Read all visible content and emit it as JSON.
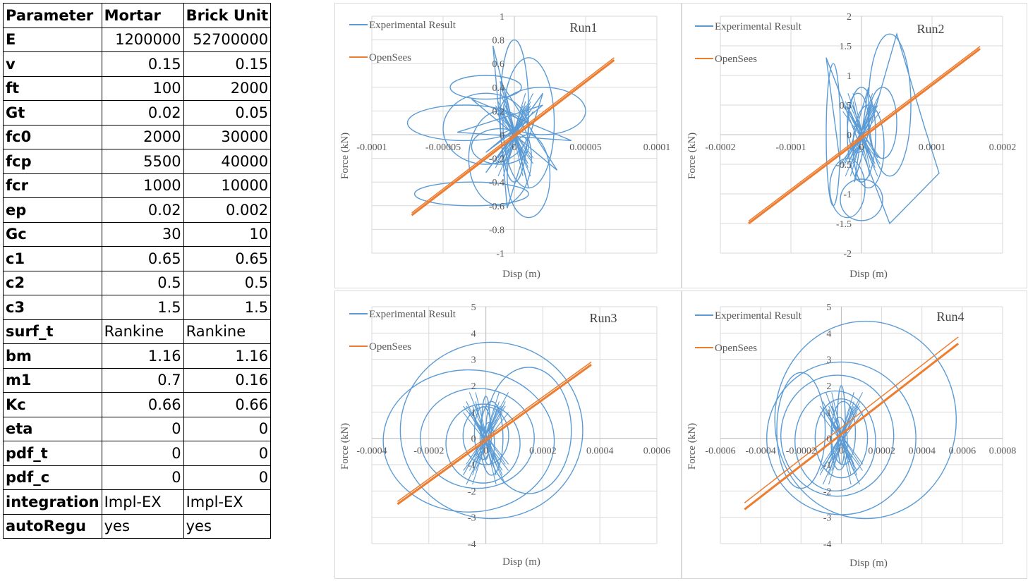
{
  "table": {
    "headers": [
      "Parameter",
      "Mortar",
      "Brick Unit"
    ],
    "rows": [
      {
        "param": "E",
        "mortar": "1200000",
        "brick": "52700000",
        "kind": "num"
      },
      {
        "param": "v",
        "mortar": "0.15",
        "brick": "0.15",
        "kind": "num"
      },
      {
        "param": "ft",
        "mortar": "100",
        "brick": "2000",
        "kind": "num"
      },
      {
        "param": "Gt",
        "mortar": "0.02",
        "brick": "0.05",
        "kind": "num"
      },
      {
        "param": "fc0",
        "mortar": "2000",
        "brick": "30000",
        "kind": "num"
      },
      {
        "param": "fcp",
        "mortar": "5500",
        "brick": "40000",
        "kind": "num"
      },
      {
        "param": "fcr",
        "mortar": "1000",
        "brick": "10000",
        "kind": "num"
      },
      {
        "param": "ep",
        "mortar": "0.02",
        "brick": "0.002",
        "kind": "num"
      },
      {
        "param": "Gc",
        "mortar": "30",
        "brick": "10",
        "kind": "num"
      },
      {
        "param": "c1",
        "mortar": "0.65",
        "brick": "0.65",
        "kind": "num"
      },
      {
        "param": "c2",
        "mortar": "0.5",
        "brick": "0.5",
        "kind": "num"
      },
      {
        "param": "c3",
        "mortar": "1.5",
        "brick": "1.5",
        "kind": "num"
      },
      {
        "param": "surf_t",
        "mortar": "Rankine",
        "brick": "Rankine",
        "kind": "txt"
      },
      {
        "param": "bm",
        "mortar": "1.16",
        "brick": "1.16",
        "kind": "num"
      },
      {
        "param": "m1",
        "mortar": "0.7",
        "brick": "0.16",
        "kind": "num"
      },
      {
        "param": "Kc",
        "mortar": "0.66",
        "brick": "0.66",
        "kind": "num"
      },
      {
        "param": "eta",
        "mortar": "0",
        "brick": "0",
        "kind": "num"
      },
      {
        "param": "pdf_t",
        "mortar": "0",
        "brick": "0",
        "kind": "num"
      },
      {
        "param": "pdf_c",
        "mortar": "0",
        "brick": "0",
        "kind": "num"
      },
      {
        "param": "integration",
        "mortar": "Impl-EX",
        "brick": "Impl-EX",
        "kind": "txt"
      },
      {
        "param": "autoRegu",
        "mortar": "yes",
        "brick": "yes",
        "kind": "txt"
      }
    ]
  },
  "colors": {
    "experimental": "#5b9bd5",
    "opensees": "#ed7d31",
    "grid": "#d9d9d9",
    "text": "#595959"
  },
  "chart_data": [
    {
      "type": "line",
      "title": "Run1",
      "xlabel": "Disp (m)",
      "ylabel": "Force (kN)",
      "xlim": [
        -0.0001,
        0.0001
      ],
      "ylim": [
        -1,
        1
      ],
      "xticks": [
        -0.0001,
        -5e-05,
        0,
        5e-05,
        0.0001
      ],
      "xtick_labels": [
        "-0.0001",
        "-0.00005",
        "0",
        "0.00005",
        "0.0001"
      ],
      "yticks": [
        -1,
        -0.8,
        -0.6,
        -0.4,
        -0.2,
        0,
        0.2,
        0.4,
        0.6,
        0.8,
        1
      ],
      "ytick_labels": [
        "-1",
        "-0.8",
        "-0.6",
        "-0.4",
        "-0.2",
        "0",
        "0.2",
        "0.4",
        "0.6",
        "0.8",
        "1"
      ],
      "grid": true,
      "legend_position": "top-left",
      "series": [
        {
          "name": "Experimental Result",
          "loops": [
            {
              "cx": -1e-05,
              "cy": -0.2,
              "rx": 2.2e-05,
              "ry": 0.4
            },
            {
              "cx": 1e-05,
              "cy": 0.1,
              "rx": 1.8e-05,
              "ry": 0.55
            },
            {
              "cx": 0.0,
              "cy": 0.2,
              "rx": 1e-05,
              "ry": 0.6
            },
            {
              "cx": -2e-05,
              "cy": 0.05,
              "rx": 3e-05,
              "ry": 0.3
            },
            {
              "cx": 1e-05,
              "cy": -0.35,
              "rx": 1.5e-05,
              "ry": 0.35
            },
            {
              "cx": -2e-05,
              "cy": 0.4,
              "rx": 2.5e-05,
              "ry": 0.1
            },
            {
              "cx": -3e-05,
              "cy": -0.5,
              "rx": 4e-05,
              "ry": 0.1
            },
            {
              "cx": -3.5e-05,
              "cy": 0.1,
              "rx": 4e-05,
              "ry": 0.15
            },
            {
              "cx": 2e-05,
              "cy": 0.2,
              "rx": 3e-05,
              "ry": 0.2
            },
            {
              "cx": -1e-05,
              "cy": -0.1,
              "rx": 2e-05,
              "ry": 0.15
            }
          ],
          "points": [
            [
              -1e-05,
              0.0
            ],
            [
              1e-05,
              0.12
            ],
            [
              -2e-05,
              -0.15
            ],
            [
              2e-05,
              0.25
            ],
            [
              -4e-05,
              0.02
            ],
            [
              4e-05,
              -0.05
            ],
            [
              -3e-05,
              0.3
            ],
            [
              3e-05,
              -0.3
            ],
            [
              -1e-05,
              0.45
            ],
            [
              1e-05,
              -0.45
            ],
            [
              -1.5e-05,
              0.75
            ],
            [
              -5e-06,
              -0.62
            ],
            [
              2e-05,
              0.35
            ],
            [
              -2e-05,
              -0.32
            ],
            [
              0.0,
              0.0
            ]
          ]
        },
        {
          "name": "OpenSees",
          "x": [
            -7.2e-05,
            7e-05
          ],
          "y": [
            -0.68,
            0.63
          ],
          "band": 0.02
        }
      ]
    },
    {
      "type": "line",
      "title": "Run2",
      "xlabel": "Disp (m)",
      "ylabel": "Force (kN)",
      "xlim": [
        -0.0002,
        0.0002
      ],
      "ylim": [
        -2,
        2
      ],
      "xticks": [
        -0.0002,
        -0.0001,
        0,
        0.0001,
        0.0002
      ],
      "xtick_labels": [
        "-0.0002",
        "-0.0001",
        "0",
        "0.0001",
        "0.0002"
      ],
      "yticks": [
        -2,
        -1.5,
        -1,
        -0.5,
        0,
        0.5,
        1,
        1.5,
        2
      ],
      "ytick_labels": [
        "-2",
        "-1.5",
        "-1",
        "-0.5",
        "0",
        "0.5",
        "1",
        "1.5",
        "2"
      ],
      "grid": true,
      "legend_position": "top-left",
      "series": [
        {
          "name": "Experimental Result",
          "loops": [
            {
              "cx": 0.0,
              "cy": 0.0,
              "rx": 2e-05,
              "ry": 0.8
            },
            {
              "cx": -5e-06,
              "cy": 0.2,
              "rx": 1.5e-05,
              "ry": 0.5
            },
            {
              "cx": 1e-05,
              "cy": -0.2,
              "rx": 2.2e-05,
              "ry": 0.7
            },
            {
              "cx": -4e-05,
              "cy": 0.0,
              "rx": 1e-05,
              "ry": 1.2
            },
            {
              "cx": 4e-05,
              "cy": 0.5,
              "rx": 3e-05,
              "ry": 1.2
            },
            {
              "cx": 0.0,
              "cy": -1.1,
              "rx": 3e-05,
              "ry": 0.35
            },
            {
              "cx": -2e-05,
              "cy": -0.9,
              "rx": 2.5e-05,
              "ry": 0.5
            },
            {
              "cx": 3e-05,
              "cy": 0.2,
              "rx": 2e-05,
              "ry": 0.6
            }
          ],
          "points": [
            [
              0.0,
              0.0
            ],
            [
              2e-05,
              0.4
            ],
            [
              -2e-05,
              -0.4
            ],
            [
              1e-05,
              0.8
            ],
            [
              -1e-05,
              -0.8
            ],
            [
              5e-05,
              1.7
            ],
            [
              9e-05,
              0.1
            ],
            [
              0.00011,
              -0.65
            ],
            [
              4e-05,
              -1.5
            ],
            [
              -5e-05,
              1.3
            ],
            [
              -3e-05,
              -0.5
            ],
            [
              0.0,
              0.0
            ]
          ]
        },
        {
          "name": "OpenSees",
          "x": [
            -0.00016,
            0.000168
          ],
          "y": [
            -1.5,
            1.45
          ],
          "band": 0.04
        }
      ]
    },
    {
      "type": "line",
      "title": "Run3",
      "xlabel": "Disp (m)",
      "ylabel": "Force (kN)",
      "xlim": [
        -0.0004,
        0.0006
      ],
      "ylim": [
        -4,
        5
      ],
      "xticks": [
        -0.0004,
        -0.0002,
        0,
        0.0002,
        0.0004,
        0.0006
      ],
      "xtick_labels": [
        "-0.0004",
        "-0.0002",
        "0",
        "0.0002",
        "0.0004",
        "0.0006"
      ],
      "yticks": [
        -4,
        -3,
        -2,
        -1,
        0,
        1,
        2,
        3,
        4,
        5
      ],
      "ytick_labels": [
        "-4",
        "-3",
        "-2",
        "-1",
        "0",
        "1",
        "2",
        "3",
        "4",
        "5"
      ],
      "grid": true,
      "legend_position": "top-left",
      "series": [
        {
          "name": "Experimental Result",
          "loops": [
            {
              "cx": 2e-05,
              "cy": 0.3,
              "rx": 0.00032,
              "ry": 3.35
            },
            {
              "cx": -6e-05,
              "cy": -0.1,
              "rx": 0.0003,
              "ry": 2.7
            },
            {
              "cx": -3e-05,
              "cy": 0.0,
              "rx": 0.0002,
              "ry": 1.9
            },
            {
              "cx": -1e-05,
              "cy": -0.2,
              "rx": 0.00013,
              "ry": 1.5
            },
            {
              "cx": 0.0,
              "cy": 0.1,
              "rx": 8e-05,
              "ry": 1.1
            },
            {
              "cx": 2e-05,
              "cy": 0.0,
              "rx": 4e-05,
              "ry": 1.4
            },
            {
              "cx": -1e-05,
              "cy": 0.2,
              "rx": 3e-05,
              "ry": 1.0
            },
            {
              "cx": 1e-05,
              "cy": -0.2,
              "rx": 2e-05,
              "ry": 0.8
            },
            {
              "cx": 0.0,
              "cy": 0.4,
              "rx": 1.5e-05,
              "ry": 1.2
            },
            {
              "cx": 0.00015,
              "cy": 0.3,
              "rx": 0.00015,
              "ry": 2.4
            }
          ],
          "points": []
        },
        {
          "name": "OpenSees",
          "x": [
            -0.00031,
            0.00037
          ],
          "y": [
            -2.5,
            2.8
          ],
          "band": 0.1
        }
      ]
    },
    {
      "type": "line",
      "title": "Run4",
      "xlabel": "Disp (m)",
      "ylabel": "Force (kN)",
      "xlim": [
        -0.0006,
        0.0008
      ],
      "ylim": [
        -4,
        5
      ],
      "xticks": [
        -0.0006,
        -0.0004,
        -0.0002,
        0,
        0.0002,
        0.0004,
        0.0006,
        0.0008
      ],
      "xtick_labels": [
        "-0.0006",
        "-0.0004",
        "-0.0002",
        "0",
        "0.0002",
        "0.0004",
        "0.0006",
        "0.0008"
      ],
      "yticks": [
        -4,
        -3,
        -2,
        -1,
        0,
        1,
        2,
        3,
        4,
        5
      ],
      "ytick_labels": [
        "-4",
        "-3",
        "-2",
        "-1",
        "0",
        "1",
        "2",
        "3",
        "4",
        "5"
      ],
      "grid": true,
      "legend_position": "top-left",
      "series": [
        {
          "name": "Experimental Result",
          "loops": [
            {
              "cx": 0.00012,
              "cy": 0.7,
              "rx": 0.00045,
              "ry": 3.75
            },
            {
              "cx": 0.0,
              "cy": 0.0,
              "rx": 0.00037,
              "ry": 2.9
            },
            {
              "cx": -2e-05,
              "cy": 0.1,
              "rx": 0.00028,
              "ry": 2.3
            },
            {
              "cx": -3e-05,
              "cy": -0.1,
              "rx": 0.0002,
              "ry": 1.9
            },
            {
              "cx": 0.0,
              "cy": 0.0,
              "rx": 0.00013,
              "ry": 1.5
            },
            {
              "cx": 1e-05,
              "cy": 0.2,
              "rx": 6e-05,
              "ry": 1.2
            },
            {
              "cx": -1e-05,
              "cy": -0.2,
              "rx": 4e-05,
              "ry": 1.0
            },
            {
              "cx": 0.0,
              "cy": 0.5,
              "rx": 2e-05,
              "ry": 1.5
            },
            {
              "cx": -0.0002,
              "cy": 0.3,
              "rx": 0.00012,
              "ry": 2.2
            }
          ],
          "points": []
        },
        {
          "name": "OpenSees",
          "x": [
            -0.00048,
            0.00058
          ],
          "y": [
            -2.7,
            3.6
          ],
          "band": 0.25
        }
      ]
    }
  ]
}
